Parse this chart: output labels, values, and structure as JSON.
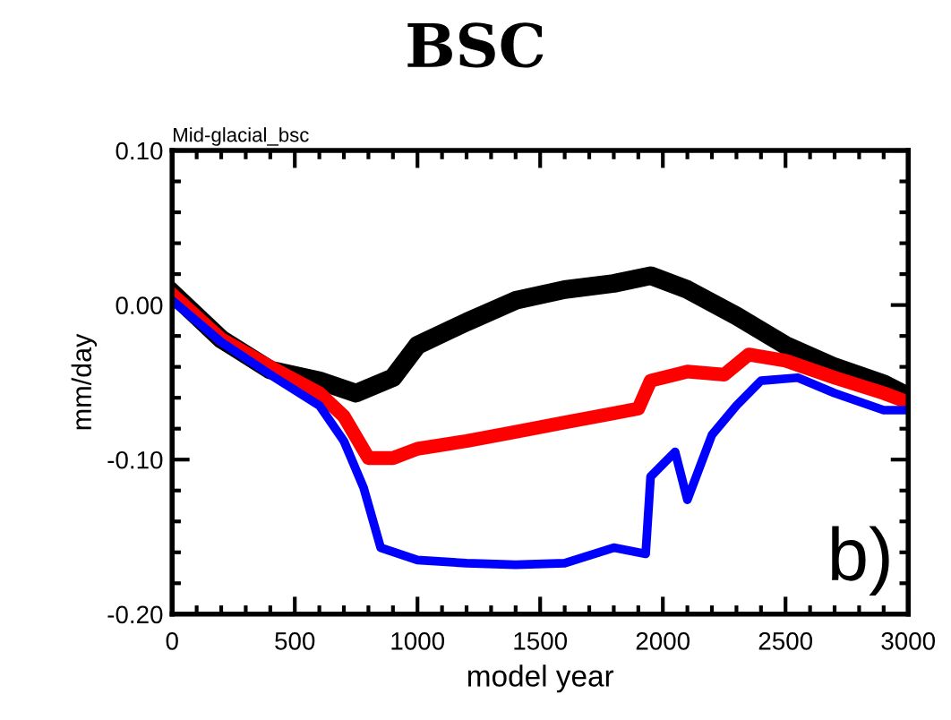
{
  "chart_data": {
    "type": "line",
    "title": "BSC",
    "subtitle": "Mid-glacial_bsc",
    "xlabel": "model year",
    "ylabel": "mm/day",
    "annotations": [
      "b)"
    ],
    "xlim": [
      0,
      3000
    ],
    "xticks": [
      0,
      500,
      1000,
      1500,
      2000,
      2500,
      3000
    ],
    "ylim": [
      -0.2,
      0.1
    ],
    "yticks": [
      {
        "value": -0.2,
        "label": "-0.20"
      },
      {
        "value": -0.1,
        "label": "-0.10"
      },
      {
        "value": 0.0,
        "label": "0.00"
      },
      {
        "value": 0.1,
        "label": "0.10"
      }
    ],
    "grid": false,
    "legend": false,
    "marker": "none",
    "line_style": "solid",
    "series": [
      {
        "color": "#000000",
        "x": [
          0,
          200,
          400,
          600,
          750,
          900,
          1000,
          1200,
          1400,
          1600,
          1800,
          1950,
          2100,
          2300,
          2500,
          2700,
          2900,
          3000
        ],
        "values": [
          0.008,
          -0.022,
          -0.042,
          -0.049,
          -0.057,
          -0.047,
          -0.026,
          -0.011,
          0.003,
          0.01,
          0.014,
          0.019,
          0.01,
          -0.007,
          -0.026,
          -0.04,
          -0.051,
          -0.059
        ]
      },
      {
        "color": "#ff0000",
        "x": [
          0,
          200,
          400,
          600,
          700,
          800,
          900,
          1000,
          1200,
          1400,
          1600,
          1800,
          1900,
          1950,
          2100,
          2250,
          2350,
          2500,
          2700,
          2900,
          3000
        ],
        "values": [
          0.007,
          -0.022,
          -0.04,
          -0.057,
          -0.072,
          -0.099,
          -0.099,
          -0.093,
          -0.088,
          -0.082,
          -0.076,
          -0.07,
          -0.067,
          -0.049,
          -0.043,
          -0.045,
          -0.032,
          -0.036,
          -0.047,
          -0.057,
          -0.063
        ]
      },
      {
        "color": "#0000ff",
        "x": [
          0,
          200,
          400,
          600,
          700,
          780,
          850,
          1000,
          1200,
          1400,
          1600,
          1800,
          1930,
          1950,
          2050,
          2100,
          2200,
          2300,
          2400,
          2550,
          2700,
          2900,
          3000
        ],
        "values": [
          0.003,
          -0.024,
          -0.045,
          -0.065,
          -0.088,
          -0.118,
          -0.157,
          -0.165,
          -0.167,
          -0.168,
          -0.167,
          -0.157,
          -0.161,
          -0.111,
          -0.095,
          -0.126,
          -0.084,
          -0.065,
          -0.049,
          -0.047,
          -0.057,
          -0.068,
          -0.068
        ]
      }
    ]
  }
}
